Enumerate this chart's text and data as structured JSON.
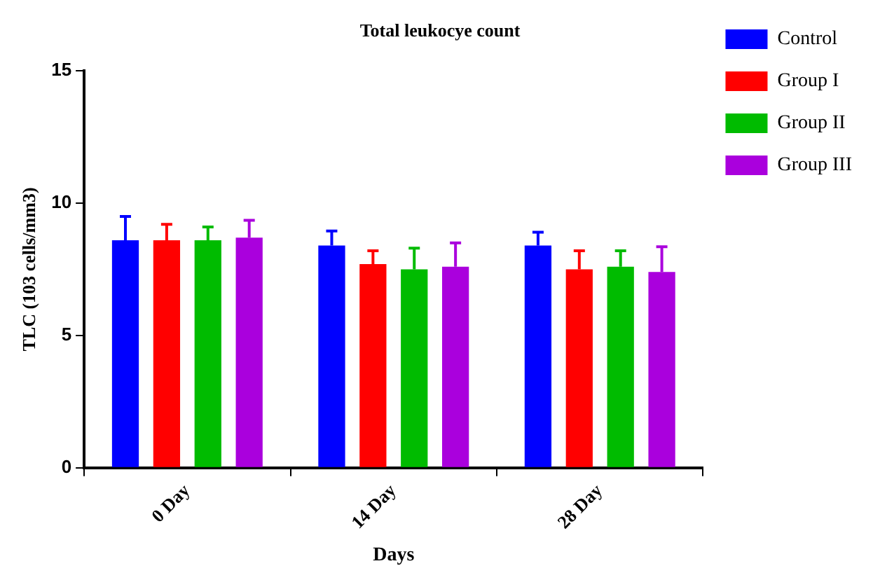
{
  "chart_data": {
    "type": "bar",
    "title": "Total leukocye count",
    "xlabel": "Days",
    "ylabel": "TLC (103 cells/mm3)",
    "categories": [
      "0 Day",
      "14 Day",
      "28 Day"
    ],
    "series": [
      {
        "name": "Control",
        "color": "#0000ff",
        "values": [
          8.6,
          8.4,
          8.4
        ],
        "errors": [
          [
            8.6,
            9.5
          ],
          [
            8.4,
            8.95
          ],
          [
            8.4,
            8.9
          ]
        ]
      },
      {
        "name": "Group I",
        "color": "#ff0000",
        "values": [
          8.6,
          7.7,
          7.5
        ],
        "errors": [
          [
            8.6,
            9.2
          ],
          [
            7.7,
            8.2
          ],
          [
            7.5,
            8.2
          ]
        ]
      },
      {
        "name": "Group II",
        "color": "#00bb00",
        "values": [
          8.6,
          7.5,
          7.6
        ],
        "errors": [
          [
            8.6,
            9.1
          ],
          [
            7.5,
            8.3
          ],
          [
            7.6,
            8.2
          ]
        ]
      },
      {
        "name": "Group III",
        "color": "#aa00dd",
        "values": [
          8.7,
          7.6,
          7.4
        ],
        "errors": [
          [
            8.7,
            9.35
          ],
          [
            7.6,
            8.5
          ],
          [
            7.4,
            8.35
          ]
        ]
      }
    ],
    "ylim": [
      0,
      15
    ],
    "yticks": [
      0,
      5,
      10,
      15
    ],
    "grid": false,
    "legend": "right"
  }
}
